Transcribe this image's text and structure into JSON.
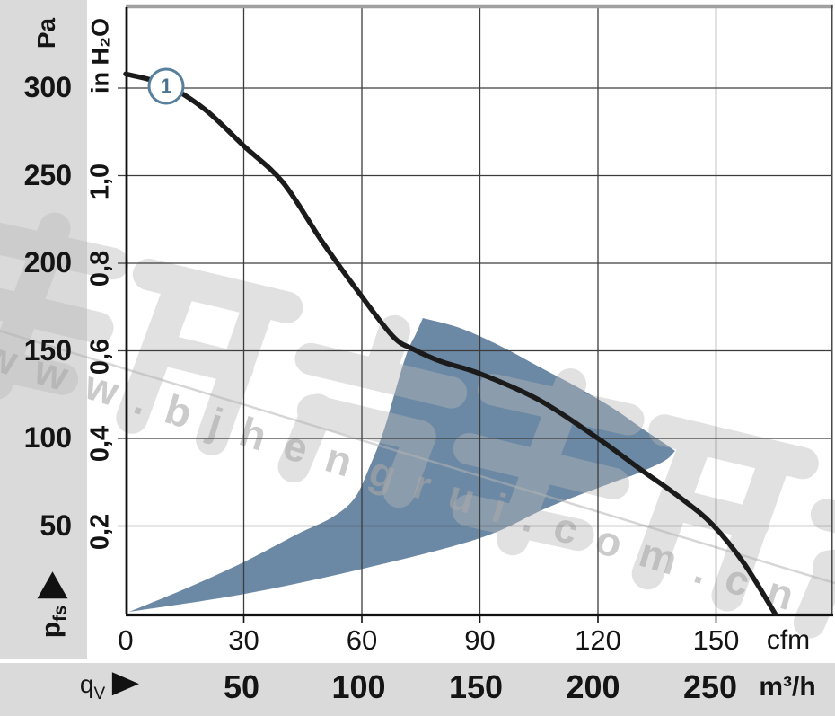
{
  "watermark": {
    "brand_text": "恒瑞宏晟机电",
    "url": "www.bjhengrui.com.cn"
  },
  "chart_data": {
    "type": "line",
    "pressure_axis_pa": {
      "unit_label": "Pa",
      "ticks": [
        300,
        250,
        200,
        150,
        100,
        50
      ],
      "symbol": "p",
      "symbol_sub": "fs"
    },
    "pressure_axis_inh2o": {
      "unit_label": "in H₂O",
      "ticks": [
        "1,0",
        "0,8",
        "0,6",
        "0,4",
        "0,2"
      ],
      "tick_pa_positions": [
        250,
        200,
        150,
        100,
        50
      ]
    },
    "flow_axis_cfm": {
      "unit_label": "cfm",
      "ticks": [
        0,
        30,
        60,
        90,
        120,
        150
      ]
    },
    "flow_axis_m3h": {
      "unit_label": "m³/h",
      "symbol": "q",
      "symbol_sub": "V",
      "ticks": [
        50,
        100,
        150,
        200,
        250
      ]
    },
    "ylim_pa": [
      0,
      346
    ],
    "xlim_cfm": [
      0,
      179.8
    ],
    "grid": true,
    "curve": {
      "badge_label": "1",
      "badge_at_cfm": 10.3,
      "badge_at_pa": 301,
      "color": "#1b1b1b",
      "points_cfm_pa": [
        [
          0,
          308
        ],
        [
          10,
          302
        ],
        [
          20,
          288
        ],
        [
          30,
          267
        ],
        [
          40,
          246
        ],
        [
          50,
          212
        ],
        [
          60,
          181
        ],
        [
          68,
          158
        ],
        [
          73,
          151
        ],
        [
          80,
          144
        ],
        [
          90,
          137
        ],
        [
          105,
          122
        ],
        [
          120,
          100
        ],
        [
          131,
          82
        ],
        [
          141,
          66
        ],
        [
          149,
          51
        ],
        [
          157,
          29
        ],
        [
          165,
          0
        ]
      ]
    },
    "operating_region": {
      "color": "#6b88a4",
      "edge_upper_cfm_pa": [
        [
          0.9,
          1
        ],
        [
          16,
          15
        ],
        [
          30.3,
          29.7
        ],
        [
          43.3,
          45
        ],
        [
          52.5,
          55
        ],
        [
          58.2,
          66
        ],
        [
          62,
          84
        ],
        [
          65.5,
          104
        ],
        [
          68.5,
          127
        ],
        [
          71.5,
          149
        ],
        [
          73.8,
          160
        ],
        [
          75.5,
          168.7
        ]
      ],
      "edge_top_cfm_pa": [
        [
          75.5,
          168.7
        ],
        [
          85,
          163
        ],
        [
          95,
          153
        ],
        [
          105,
          141
        ],
        [
          115,
          129
        ],
        [
          124,
          117
        ],
        [
          131,
          106
        ],
        [
          137,
          97
        ],
        [
          139.6,
          92.8
        ]
      ],
      "edge_lower_cfm_pa": [
        [
          139.6,
          92.8
        ],
        [
          136.9,
          87.2
        ],
        [
          130,
          80
        ],
        [
          123.2,
          74.4
        ],
        [
          107.2,
          60.5
        ],
        [
          89.9,
          43
        ],
        [
          60.2,
          25.6
        ],
        [
          30.3,
          11.3
        ],
        [
          0.9,
          1
        ]
      ]
    }
  }
}
